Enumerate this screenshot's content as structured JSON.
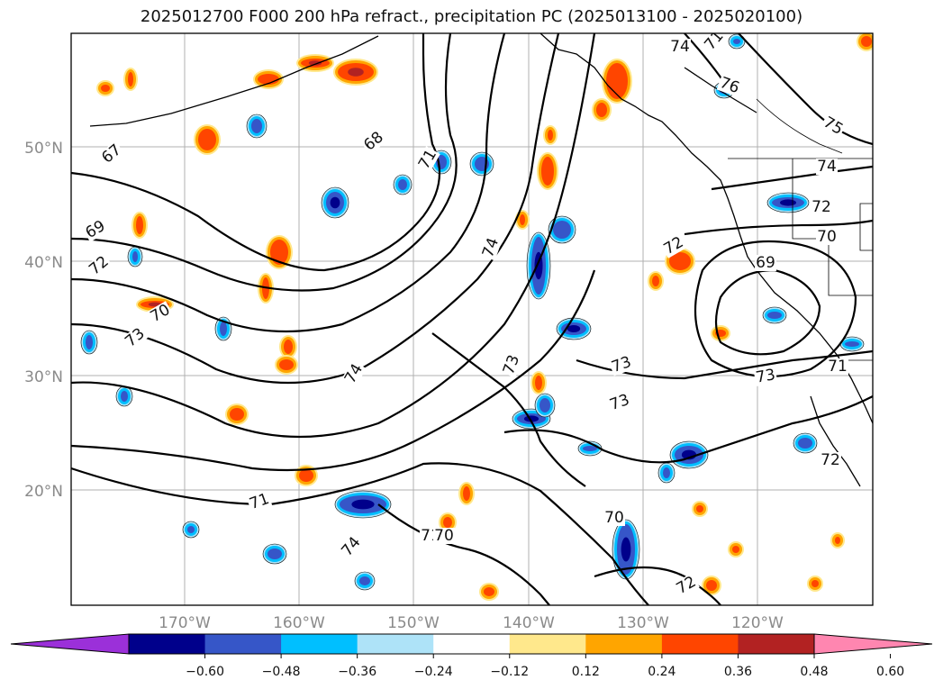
{
  "title": "2025012700 F000 200 hPa refract., precipitation PC (2025013100 - 2025020100)",
  "latitude_ticks": [
    "50°N",
    "40°N",
    "30°N",
    "20°N"
  ],
  "longitude_ticks": [
    "170°W",
    "160°W",
    "150°W",
    "140°W",
    "130°W",
    "120°W"
  ],
  "colorbar": {
    "ticks": [
      "−0.60",
      "−0.48",
      "−0.36",
      "−0.24",
      "−0.12",
      "0.12",
      "0.24",
      "0.36",
      "0.48",
      "0.60"
    ],
    "colors": [
      "#9b30d9",
      "#00008b",
      "#3656c8",
      "#00bfff",
      "#aee3f8",
      "#ffffff",
      "#ffe88c",
      "#ffa500",
      "#ff4500",
      "#b22222",
      "#ff86b0"
    ]
  },
  "contour_labels": [
    "67",
    "68",
    "71",
    "69",
    "72",
    "70",
    "73",
    "74",
    "74",
    "73",
    "73",
    "73",
    "74",
    "71",
    "71",
    "70",
    "72",
    "73",
    "74",
    "72",
    "70",
    "69",
    "71",
    "72",
    "72",
    "74",
    "75",
    "76",
    "71",
    "70"
  ],
  "colors": {
    "contour": "#000000",
    "grid": "#b0b0b0",
    "coast": "#000000"
  }
}
